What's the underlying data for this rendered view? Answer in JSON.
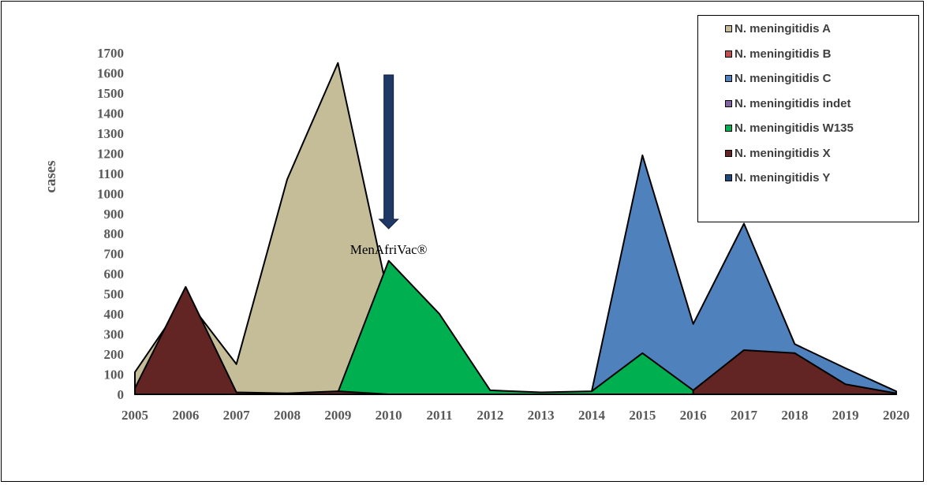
{
  "chart_data": {
    "type": "area",
    "x": [
      "2005",
      "2006",
      "2007",
      "2008",
      "2009",
      "2010",
      "2011",
      "2012",
      "2013",
      "2014",
      "2015",
      "2016",
      "2017",
      "2018",
      "2019",
      "2020"
    ],
    "ylabel": "cases",
    "xlabel": "",
    "ylim": [
      0,
      1700
    ],
    "yticks": [
      0,
      100,
      200,
      300,
      400,
      500,
      600,
      700,
      800,
      900,
      1000,
      1100,
      1200,
      1300,
      1400,
      1500,
      1600,
      1700
    ],
    "series": [
      {
        "name": "N. meningitidis A",
        "color": "#c4bd97",
        "values": [
          110,
          480,
          150,
          1070,
          1650,
          480,
          null,
          null,
          null,
          null,
          null,
          null,
          null,
          null,
          null,
          null
        ]
      },
      {
        "name": "N. meningitidis B",
        "color": "#c0504d",
        "values": [
          null,
          null,
          null,
          null,
          null,
          null,
          null,
          null,
          null,
          null,
          null,
          null,
          null,
          null,
          null,
          null
        ]
      },
      {
        "name": "N. meningitidis C",
        "color": "#4f81bd",
        "values": [
          null,
          null,
          null,
          null,
          null,
          null,
          null,
          null,
          null,
          15,
          1190,
          350,
          850,
          250,
          130,
          15
        ]
      },
      {
        "name": "N. meningitidis indet",
        "color": "#8064a2",
        "values": [
          null,
          null,
          null,
          null,
          null,
          null,
          null,
          null,
          null,
          null,
          null,
          null,
          null,
          null,
          null,
          null
        ]
      },
      {
        "name": "N. meningitidis W135",
        "color": "#00b050",
        "values": [
          null,
          null,
          null,
          null,
          10,
          665,
          400,
          20,
          10,
          15,
          205,
          20,
          null,
          null,
          null,
          null
        ]
      },
      {
        "name": "N. meningitidis X",
        "color": "#632523",
        "values": [
          30,
          535,
          10,
          5,
          15,
          0,
          null,
          null,
          null,
          null,
          null,
          20,
          220,
          205,
          50,
          5
        ]
      },
      {
        "name": "N. meningitidis Y",
        "color": "#1f497d",
        "values": [
          null,
          null,
          null,
          null,
          null,
          null,
          null,
          null,
          null,
          null,
          null,
          null,
          null,
          null,
          null,
          null
        ]
      }
    ],
    "annotations": [
      {
        "text": "MenAfriVac®",
        "x": "2010",
        "y": 720,
        "arrow": "down"
      }
    ],
    "legend_position": "top-right",
    "grid": false
  }
}
